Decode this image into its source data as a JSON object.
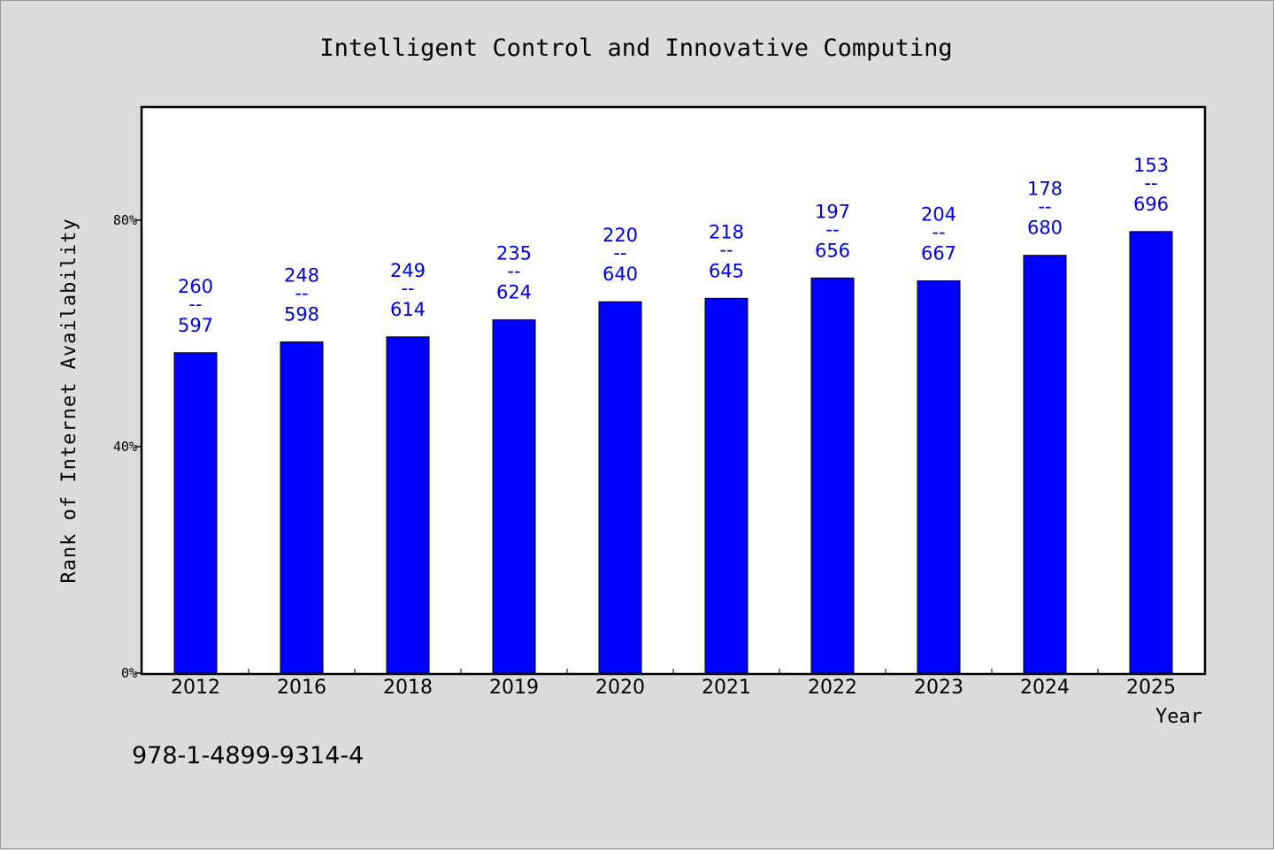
{
  "chart_data": {
    "type": "bar",
    "title": "Intelligent Control and Innovative Computing",
    "xlabel": "Year",
    "ylabel": "Rank of Internet Availability",
    "categories": [
      "2012",
      "2016",
      "2018",
      "2019",
      "2020",
      "2021",
      "2022",
      "2023",
      "2024",
      "2025"
    ],
    "values": [
      56.6,
      58.5,
      59.4,
      62.4,
      65.6,
      66.2,
      69.8,
      69.3,
      73.8,
      78.0
    ],
    "data_labels": [
      {
        "top": "260",
        "mid": "--",
        "bottom": "597"
      },
      {
        "top": "248",
        "mid": "--",
        "bottom": "598"
      },
      {
        "top": "249",
        "mid": "--",
        "bottom": "614"
      },
      {
        "top": "235",
        "mid": "--",
        "bottom": "624"
      },
      {
        "top": "220",
        "mid": "--",
        "bottom": "640"
      },
      {
        "top": "218",
        "mid": "--",
        "bottom": "645"
      },
      {
        "top": "197",
        "mid": "--",
        "bottom": "656"
      },
      {
        "top": "204",
        "mid": "--",
        "bottom": "667"
      },
      {
        "top": "178",
        "mid": "--",
        "bottom": "680"
      },
      {
        "top": "153",
        "mid": "--",
        "bottom": "696"
      }
    ],
    "yticks": [
      {
        "value": 0,
        "label": "0%"
      },
      {
        "value": 40,
        "label": "40%"
      },
      {
        "value": 80,
        "label": "80%"
      }
    ],
    "ylim": [
      0,
      100
    ],
    "grid": false,
    "bar_color": "#0000ff"
  },
  "footer_code": "978-1-4899-9314-4"
}
